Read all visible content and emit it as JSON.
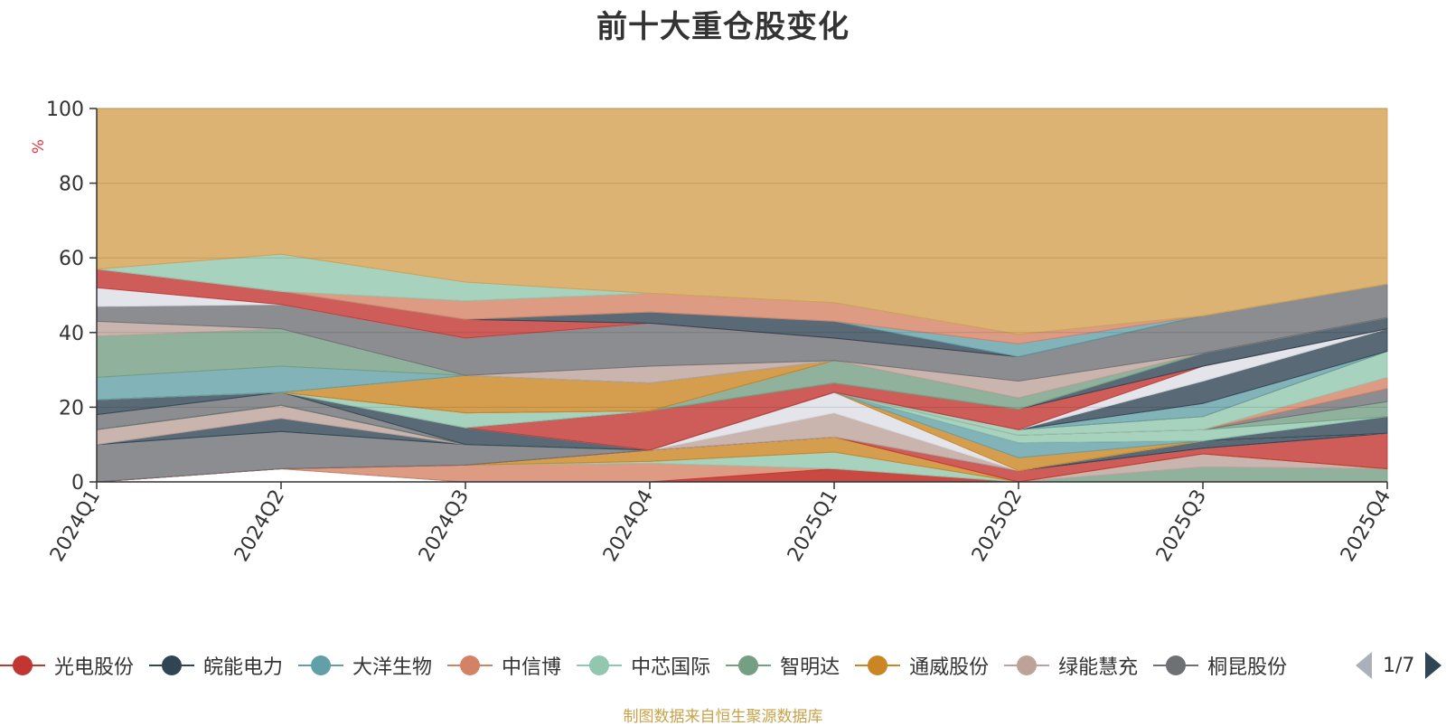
{
  "title": "前十大重仓股变化",
  "source_note": "制图数据来自恒生聚源数据库",
  "legend": {
    "page": "1/7",
    "items": [
      {
        "label": "光电股份",
        "color": "#c23531"
      },
      {
        "label": "皖能电力",
        "color": "#2f4554"
      },
      {
        "label": "大洋生物",
        "color": "#61a0a8"
      },
      {
        "label": "中信博",
        "color": "#d48265"
      },
      {
        "label": "中芯国际",
        "color": "#91c7ae"
      },
      {
        "label": "智明达",
        "color": "#749f83"
      },
      {
        "label": "通威股份",
        "color": "#ca8622"
      },
      {
        "label": "绿能慧充",
        "color": "#bda29a"
      },
      {
        "label": "桐昆股份",
        "color": "#6e7074"
      }
    ]
  },
  "chart_data": {
    "type": "area",
    "title": "前十大重仓股变化",
    "ylabel": "%",
    "ylim": [
      0,
      100
    ],
    "yticks": [
      0,
      20,
      40,
      60,
      80,
      100
    ],
    "grid": true,
    "categories": [
      "2024Q1",
      "2024Q2",
      "2024Q3",
      "2024Q4",
      "2025Q1",
      "2025Q2",
      "2025Q3",
      "2025Q4"
    ],
    "layers": [
      {
        "color": "#6e7074",
        "lower": [
          0,
          3.5,
          0,
          0,
          0,
          0,
          0,
          0
        ],
        "upper": [
          0,
          3.5,
          0,
          0,
          0,
          0,
          0,
          0
        ]
      },
      {
        "color": "#d48265",
        "lower": [
          0,
          3.5,
          0,
          0,
          0,
          0,
          0,
          0
        ],
        "upper": [
          0,
          3.5,
          4.5,
          5,
          3.5,
          0,
          0,
          0
        ]
      },
      {
        "color": "#c23531",
        "lower": [
          0,
          0,
          0,
          0,
          0,
          0,
          0,
          0
        ],
        "upper": [
          0,
          0,
          0,
          0,
          3.5,
          0,
          0,
          0
        ]
      },
      {
        "color": "#749f83",
        "lower": [
          0,
          0,
          0,
          0,
          0,
          0,
          0,
          0
        ],
        "upper": [
          0,
          0,
          0,
          0,
          0,
          0,
          4,
          3.5
        ]
      },
      {
        "color": "#61a0a8",
        "lower": [
          0,
          0,
          0,
          0,
          0,
          0,
          4,
          3.5
        ],
        "upper": [
          0,
          0,
          0,
          0,
          0,
          0,
          4,
          3.5
        ]
      },
      {
        "color": "#91c7ae",
        "lower": [
          0,
          3.5,
          4.5,
          5,
          3.5,
          0,
          4,
          3.5
        ],
        "upper": [
          0,
          3.5,
          4.5,
          5.5,
          8,
          0,
          4,
          3.5
        ]
      },
      {
        "color": "#bda29a",
        "lower": [
          0,
          3.5,
          4.5,
          5.5,
          8,
          0,
          4,
          3.5
        ],
        "upper": [
          0,
          3.5,
          4.5,
          5.5,
          8,
          0,
          7.5,
          3.5
        ]
      },
      {
        "color": "#ca8622",
        "lower": [
          0,
          3.5,
          4.5,
          5.5,
          8,
          0,
          7.5,
          3.5
        ],
        "upper": [
          0,
          3.5,
          4.5,
          8.5,
          12,
          0,
          7.5,
          3.5
        ]
      },
      {
        "color": "#c23531",
        "lower": [
          0,
          3.5,
          4.5,
          8.5,
          12,
          0,
          7.5,
          3.5
        ],
        "upper": [
          0,
          3.5,
          4.5,
          8.5,
          12,
          3,
          9,
          13
        ]
      },
      {
        "color": "#6e7074",
        "lower": [
          0,
          3.5,
          4.5,
          8.5,
          12,
          3,
          9,
          13
        ],
        "upper": [
          10,
          13.5,
          10,
          8.5,
          12,
          3,
          9,
          13
        ]
      },
      {
        "color": "#2f4554",
        "lower": [
          10,
          13.5,
          10,
          8.5,
          12,
          3,
          9,
          13
        ],
        "upper": [
          10,
          17,
          10,
          8.5,
          12,
          3,
          11,
          13
        ]
      },
      {
        "color": "#bda29a",
        "lower": [
          10,
          17,
          10,
          8.5,
          12,
          3,
          11,
          13
        ],
        "upper": [
          14,
          20.5,
          10,
          8.5,
          18.5,
          3,
          11,
          13
        ]
      },
      {
        "color": "#dcdfe6",
        "lower": [
          14,
          20.5,
          10,
          8.5,
          18.5,
          3,
          11,
          13
        ],
        "upper": [
          14,
          20.5,
          10,
          8.5,
          24,
          3,
          11,
          13
        ]
      },
      {
        "color": "#ca8622",
        "lower": [
          14,
          20.5,
          10,
          8.5,
          24,
          3,
          11,
          13
        ],
        "upper": [
          14,
          20.5,
          10,
          8.5,
          24,
          6.5,
          11,
          13
        ]
      },
      {
        "color": "#61a0a8",
        "lower": [
          14,
          20.5,
          10,
          8.5,
          24,
          6.5,
          11,
          13
        ],
        "upper": [
          14,
          20.5,
          10,
          8.5,
          24,
          10.5,
          11,
          13
        ]
      },
      {
        "color": "#2f4554",
        "lower": [
          14,
          20.5,
          10,
          8.5,
          24,
          10.5,
          11,
          13
        ],
        "upper": [
          14,
          20.5,
          10,
          8.5,
          24,
          10.5,
          11,
          17.5
        ]
      },
      {
        "color": "#91c7ae",
        "lower": [
          14,
          20.5,
          10,
          8.5,
          24,
          10.5,
          11,
          17.5
        ],
        "upper": [
          14,
          20.5,
          10,
          8.5,
          24,
          12.5,
          14,
          17.5
        ]
      },
      {
        "color": "#749f83",
        "lower": [
          14,
          20.5,
          10,
          8.5,
          24,
          12.5,
          14,
          17.5
        ],
        "upper": [
          14,
          20.5,
          10,
          8.5,
          24,
          12.5,
          14,
          21.5
        ]
      },
      {
        "color": "#6e7074",
        "lower": [
          14,
          20.5,
          10,
          8.5,
          24,
          12.5,
          14,
          21.5
        ],
        "upper": [
          18,
          24,
          10,
          8.5,
          24,
          12.5,
          14,
          25
        ]
      },
      {
        "color": "#d48265",
        "lower": [
          18,
          24,
          10,
          8.5,
          24,
          12.5,
          14,
          25
        ],
        "upper": [
          18,
          24,
          10,
          8.5,
          24,
          12.5,
          14,
          28
        ]
      },
      {
        "color": "#91c7ae",
        "lower": [
          18,
          24,
          10,
          8.5,
          24,
          12.5,
          14,
          28
        ],
        "upper": [
          18,
          24,
          10,
          8.5,
          24,
          14,
          17.5,
          35
        ]
      },
      {
        "color": "#ca8622",
        "lower": [
          18,
          24,
          10,
          8.5,
          24,
          14,
          17.5,
          35
        ],
        "upper": [
          18,
          24,
          10,
          8.5,
          24,
          14,
          17.5,
          35
        ]
      },
      {
        "color": "#61a0a8",
        "lower": [
          18,
          24,
          10,
          8.5,
          24,
          14,
          17.5,
          35
        ],
        "upper": [
          18,
          24,
          10,
          8.5,
          24,
          14,
          21,
          35
        ]
      },
      {
        "color": "#bda29a",
        "lower": [
          18,
          24,
          10,
          8.5,
          24,
          14,
          21,
          35
        ],
        "upper": [
          18,
          24,
          10,
          8.5,
          24,
          14,
          21,
          35
        ]
      },
      {
        "color": "#2f4554",
        "lower": [
          18,
          24,
          10,
          8.5,
          24,
          14,
          21,
          35
        ],
        "upper": [
          22,
          24,
          14.5,
          8.5,
          24,
          14,
          27,
          41
        ]
      },
      {
        "color": "#dcdfe6",
        "lower": [
          22,
          24,
          14.5,
          8.5,
          24,
          14,
          27,
          41
        ],
        "upper": [
          22,
          24,
          14.5,
          8.5,
          24,
          14,
          31,
          41
        ]
      },
      {
        "color": "#c23531",
        "lower": [
          22,
          24,
          14.5,
          8.5,
          24,
          14,
          31,
          41
        ],
        "upper": [
          22,
          24,
          14.5,
          19,
          26.5,
          19.5,
          31,
          41
        ]
      },
      {
        "color": "#2f4554",
        "lower": [
          22,
          24,
          14.5,
          19,
          26.5,
          19.5,
          31,
          41
        ],
        "upper": [
          22,
          24,
          14.5,
          19,
          26.5,
          19.5,
          34.5,
          44
        ]
      },
      {
        "color": "#91c7ae",
        "lower": [
          22,
          24,
          14.5,
          19,
          26.5,
          19.5,
          34.5,
          44
        ],
        "upper": [
          22,
          24,
          18.5,
          19,
          26.5,
          19.5,
          34.5,
          44
        ]
      },
      {
        "color": "#749f83",
        "lower": [
          22,
          24,
          18.5,
          19,
          26.5,
          19.5,
          34.5,
          44
        ],
        "upper": [
          22,
          24,
          18.5,
          19,
          32.5,
          22.5,
          34.5,
          44
        ]
      },
      {
        "color": "#d48265",
        "lower": [
          22,
          24,
          18.5,
          19,
          32.5,
          22.5,
          34.5,
          44
        ],
        "upper": [
          22,
          24,
          18.5,
          19,
          32.5,
          22.5,
          34.5,
          44
        ]
      },
      {
        "color": "#ca8622",
        "lower": [
          22,
          24,
          18.5,
          19,
          32.5,
          22.5,
          34.5,
          44
        ],
        "upper": [
          22,
          24,
          28.5,
          26.5,
          32.5,
          22.5,
          34.5,
          44
        ]
      },
      {
        "color": "#749f83",
        "lower": [
          22,
          24,
          28.5,
          26.5,
          32.5,
          22.5,
          34.5,
          44
        ],
        "upper": [
          22,
          24,
          28.5,
          26.5,
          32.5,
          22.5,
          34.5,
          44
        ]
      },
      {
        "color": "#61a0a8",
        "lower": [
          22,
          24,
          28.5,
          26.5,
          32.5,
          22.5,
          34.5,
          44
        ],
        "upper": [
          28,
          31,
          28.5,
          26.5,
          32.5,
          22.5,
          34.5,
          44
        ]
      },
      {
        "color": "#749f83",
        "lower": [
          28,
          31,
          28.5,
          26.5,
          32.5,
          22.5,
          34.5,
          44
        ],
        "upper": [
          39,
          41,
          28.5,
          26.5,
          32.5,
          22.5,
          34.5,
          44
        ]
      },
      {
        "color": "#bda29a",
        "lower": [
          39,
          41,
          28.5,
          26.5,
          32.5,
          22.5,
          34.5,
          44
        ],
        "upper": [
          43,
          41,
          28.5,
          31,
          32.5,
          27,
          34.5,
          44
        ]
      },
      {
        "color": "#6e7074",
        "lower": [
          43,
          41,
          28.5,
          31,
          32.5,
          27,
          34.5,
          44
        ],
        "upper": [
          47,
          47.5,
          38.5,
          42.5,
          38.5,
          33.5,
          44.5,
          53
        ]
      },
      {
        "color": "#dcdfe6",
        "lower": [
          47,
          47.5,
          38.5,
          42.5,
          38.5,
          33.5,
          44.5,
          53
        ],
        "upper": [
          52,
          47.5,
          38.5,
          42.5,
          38.5,
          33.5,
          44.5,
          53
        ]
      },
      {
        "color": "#c23531",
        "lower": [
          52,
          47.5,
          38.5,
          42.5,
          38.5,
          33.5,
          44.5,
          53
        ],
        "upper": [
          57,
          51,
          43.5,
          42.5,
          38.5,
          33.5,
          44.5,
          53
        ]
      },
      {
        "color": "#2f4554",
        "lower": [
          57,
          51,
          43.5,
          42.5,
          38.5,
          33.5,
          44.5,
          53
        ],
        "upper": [
          57,
          51,
          43.5,
          45.5,
          43,
          33.5,
          44.5,
          53
        ]
      },
      {
        "color": "#61a0a8",
        "lower": [
          57,
          51,
          43.5,
          45.5,
          43,
          33.5,
          44.5,
          53
        ],
        "upper": [
          57,
          51,
          43.5,
          45.5,
          43,
          37,
          44.5,
          53
        ]
      },
      {
        "color": "#d48265",
        "lower": [
          57,
          51,
          43.5,
          45.5,
          43,
          37,
          44.5,
          53
        ],
        "upper": [
          57,
          51,
          48.5,
          50.5,
          48,
          39.5,
          44.5,
          53
        ]
      },
      {
        "color": "#91c7ae",
        "lower": [
          57,
          51,
          48.5,
          50.5,
          48,
          39.5,
          44.5,
          53
        ],
        "upper": [
          57,
          61,
          53.5,
          50.5,
          48,
          39.5,
          44.5,
          53
        ]
      },
      {
        "color": "#d4a050",
        "lower": [
          57,
          61,
          53.5,
          50.5,
          48,
          39.5,
          44.5,
          53
        ],
        "upper": [
          100,
          100,
          100,
          100,
          100,
          100,
          100,
          100
        ]
      }
    ]
  }
}
